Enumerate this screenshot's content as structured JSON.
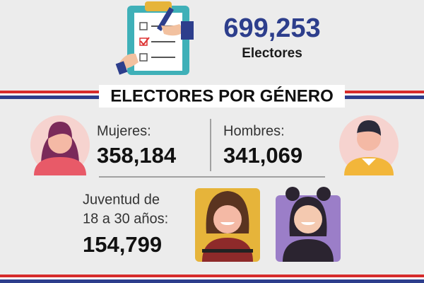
{
  "header": {
    "total": "699,253",
    "label": "Electores"
  },
  "section_title": "ELECTORES POR GÉNERO",
  "women": {
    "label": "Mujeres:",
    "value": "358,184"
  },
  "men": {
    "label": "Hombres:",
    "value": "341,069"
  },
  "youth": {
    "label_lines": [
      "Juventud de",
      "18 a 30 años:"
    ],
    "value": "154,799"
  }
}
